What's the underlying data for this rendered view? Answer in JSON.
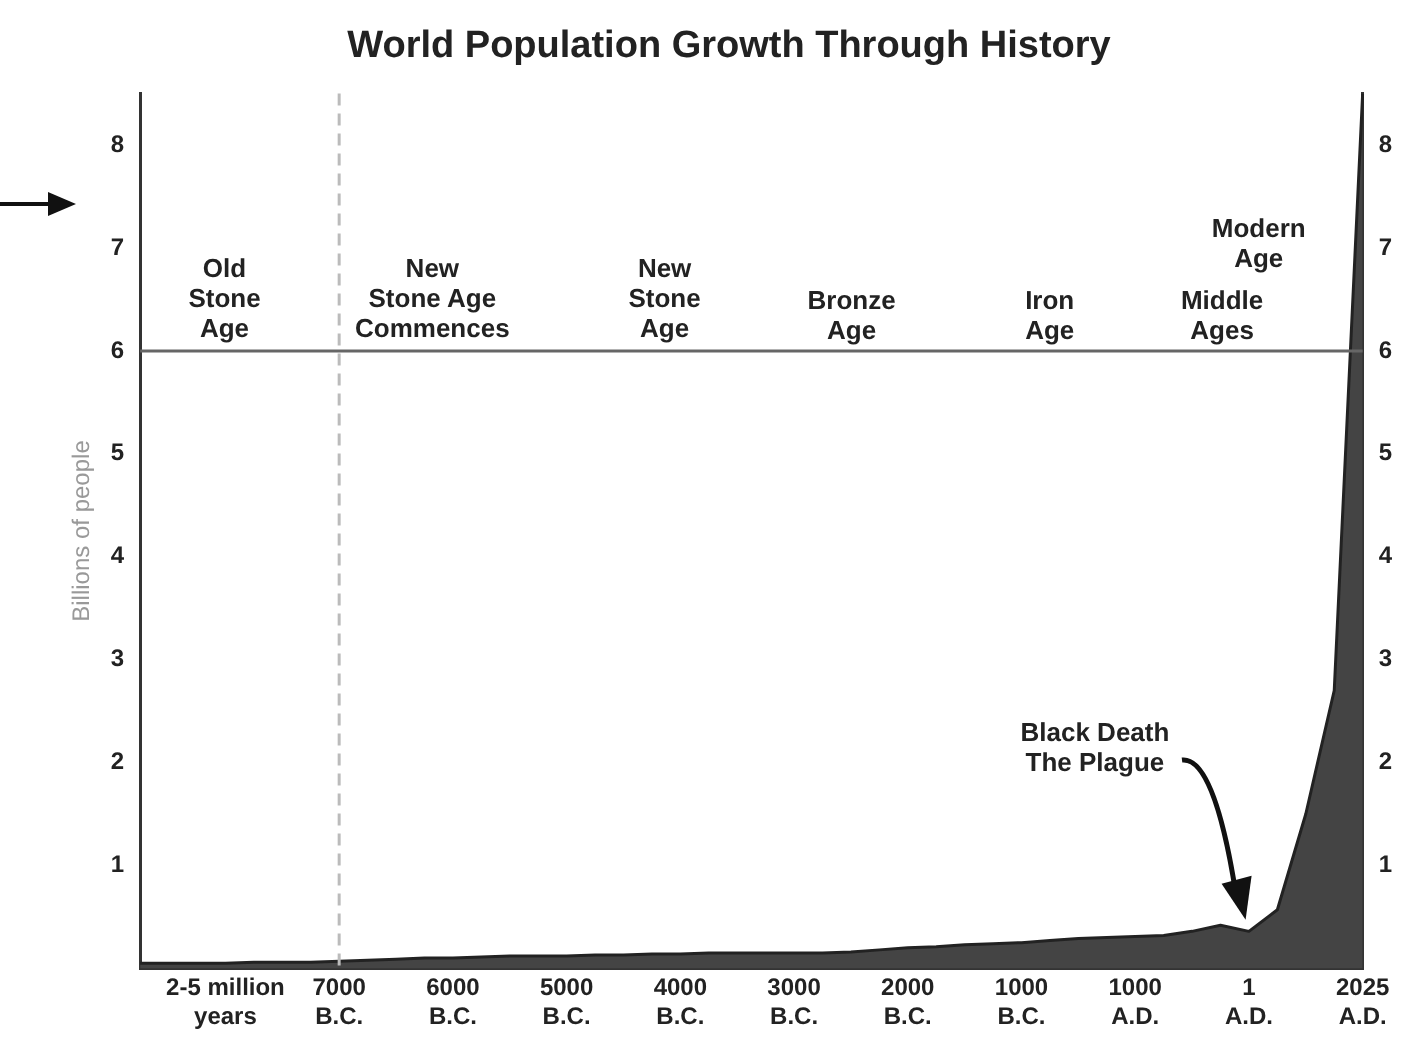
{
  "chart_data": {
    "type": "area",
    "title": "World Population Growth Through History",
    "ylabel": "Billions of people",
    "categories": [
      null,
      null,
      null,
      "2-5 million years",
      null,
      null,
      null,
      "7000 B.C.",
      null,
      null,
      null,
      "6000 B.C.",
      null,
      null,
      null,
      "5000 B.C.",
      null,
      null,
      null,
      "4000 B.C.",
      null,
      null,
      null,
      "3000 B.C.",
      null,
      null,
      null,
      "2000 B.C.",
      null,
      null,
      null,
      "1000 B.C.",
      null,
      null,
      null,
      "1000 A.D.",
      null,
      null,
      null,
      "1 A.D.",
      null,
      null,
      null,
      "2025 A.D."
    ],
    "series": [
      {
        "color": "#444444",
        "values": [
          0.05,
          0.05,
          0.05,
          0.05,
          0.06,
          0.06,
          0.06,
          0.07,
          0.08,
          0.09,
          0.1,
          0.1,
          0.11,
          0.12,
          0.12,
          0.12,
          0.13,
          0.13,
          0.14,
          0.14,
          0.15,
          0.15,
          0.15,
          0.15,
          0.15,
          0.16,
          0.18,
          0.2,
          0.21,
          0.23,
          0.24,
          0.25,
          0.27,
          0.29,
          0.3,
          0.31,
          0.32,
          0.36,
          0.42,
          0.36,
          0.57,
          1.5,
          2.7,
          8.5
        ]
      }
    ],
    "ylim": [
      0,
      8.5
    ],
    "yticks": [
      1,
      2,
      3,
      4,
      5,
      6,
      7,
      8
    ],
    "y2lim": [
      0,
      8.5
    ],
    "y2ticks": [
      1,
      2,
      3,
      4,
      5,
      6,
      7,
      8
    ],
    "ref_lines": [
      {
        "axis": "x",
        "value": "7000 B.C.",
        "color": "#bbbbbb",
        "line_style": "dashed"
      },
      {
        "axis": "y",
        "value": 6,
        "color": "#666666",
        "line_style": "solid"
      }
    ],
    "annotations": [
      "Old\nStone\nAge",
      "New\nStone Age\nCommences",
      "New\nStone\nAge",
      "Bronze\nAge",
      "Iron\nAge",
      "Middle\nAges",
      "Modern\nAge",
      "Black Death\nThe Plague"
    ],
    "grid": false,
    "legend": false,
    "marker": "none",
    "line_style": "solid"
  }
}
